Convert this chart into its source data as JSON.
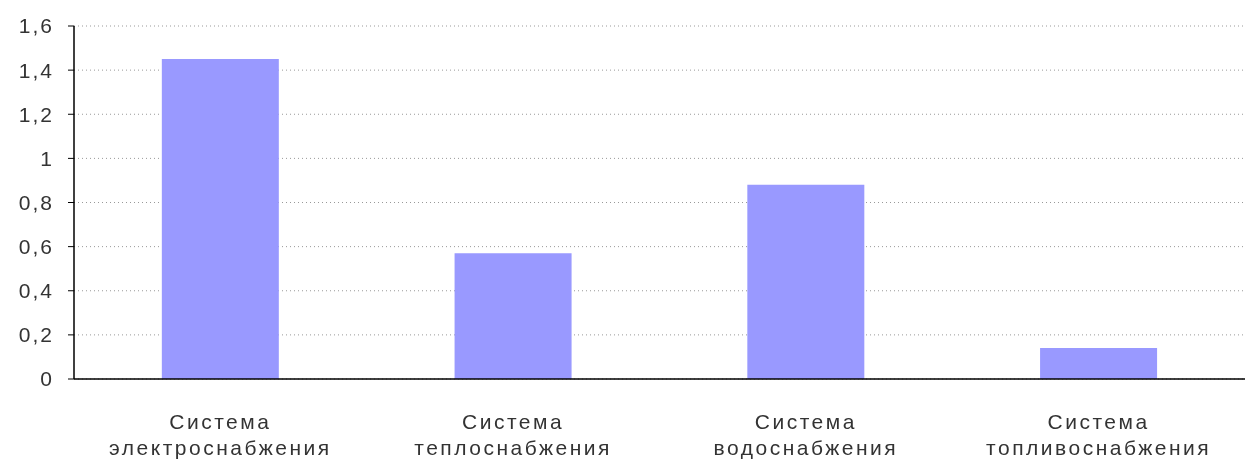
{
  "chart_data": {
    "type": "bar",
    "categories": [
      "Система электроснабжения",
      "Система теплоснабжения",
      "Система водоснабжения",
      "Система топливоснабжения"
    ],
    "values": [
      1.45,
      0.57,
      0.88,
      0.14
    ],
    "color": "#9999ff",
    "ylim": [
      0,
      1.6
    ],
    "yticks": [
      0,
      {
        "value": 0.2,
        "label": "0,2"
      },
      {
        "value": 0.4,
        "label": "0,4"
      },
      {
        "value": 0.6,
        "label": "0,6"
      },
      {
        "value": 0.8,
        "label": "0,8"
      },
      1,
      {
        "value": 1.2,
        "label": "1,2"
      },
      {
        "value": 1.4,
        "label": "1,4"
      },
      {
        "value": 1.6,
        "label": "1,6"
      }
    ],
    "grid": "y"
  }
}
